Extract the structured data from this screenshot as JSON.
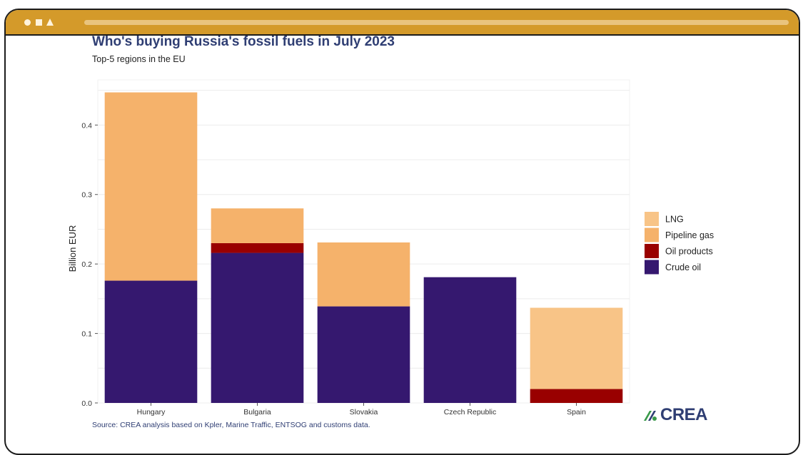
{
  "window": {
    "titlebar_color": "#d49a2a"
  },
  "chart_data": {
    "type": "bar",
    "stacked": true,
    "title": "Who's buying Russia's fossil fuels in July 2023",
    "subtitle": "Top-5 regions in the EU",
    "ylabel": "Billion EUR",
    "xlabel": "",
    "ylim": [
      0,
      0.465
    ],
    "yticks": [
      0.0,
      0.1,
      0.2,
      0.3,
      0.4
    ],
    "ytick_labels": [
      "0.0",
      "0.1",
      "0.2",
      "0.3",
      "0.4"
    ],
    "grid": true,
    "legend_position": "right",
    "categories": [
      "Hungary",
      "Bulgaria",
      "Slovakia",
      "Czech Republic",
      "Spain"
    ],
    "series": [
      {
        "name": "Crude oil",
        "color": "#35186f",
        "values": [
          0.176,
          0.216,
          0.139,
          0.181,
          0.0
        ]
      },
      {
        "name": "Oil products",
        "color": "#990000",
        "values": [
          0.0,
          0.014,
          0.0,
          0.0,
          0.02
        ]
      },
      {
        "name": "Pipeline gas",
        "color": "#f5b26b",
        "values": [
          0.271,
          0.05,
          0.092,
          0.0,
          0.0
        ]
      },
      {
        "name": "LNG",
        "color": "#f8c487",
        "values": [
          0.0,
          0.0,
          0.0,
          0.0,
          0.117
        ]
      }
    ],
    "legend_order": [
      "LNG",
      "Pipeline gas",
      "Oil products",
      "Crude oil"
    ]
  },
  "source": "Source: CREA analysis based on Kpler, Marine Traffic, ENTSOG and customs data.",
  "logo": {
    "text": "CREA",
    "color": "#2f3e73",
    "accent_color": "#3a9a4a"
  }
}
